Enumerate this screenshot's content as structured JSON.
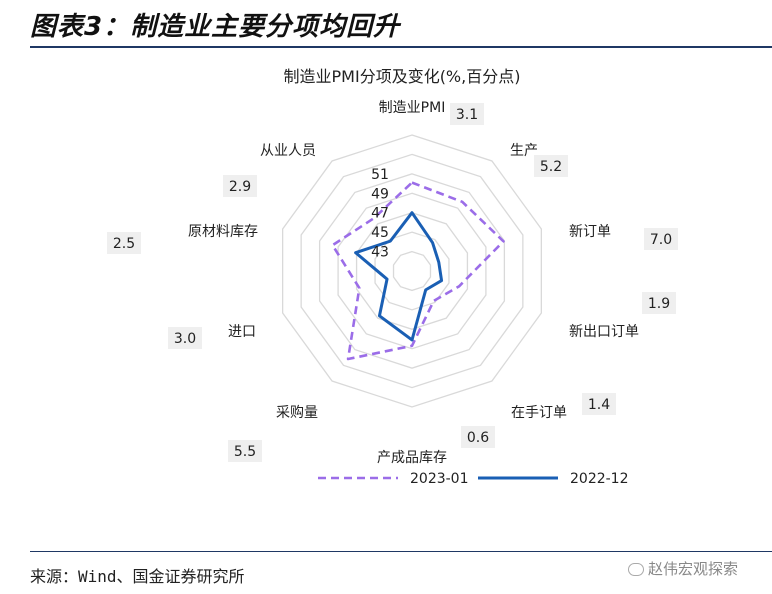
{
  "heading": "图表3：制造业主要分项均回升",
  "source": "来源：Wind、国金证券研究所",
  "watermark": "赵伟宏观探索",
  "chart_data": {
    "type": "radar",
    "title": "制造业PMI分项及变化(%,百分点)",
    "axes": [
      "制造业PMI",
      "生产",
      "新订单",
      "新出口订单",
      "在手订单",
      "产成品库存",
      "采购量",
      "进口",
      "原材料库存",
      "从业人员"
    ],
    "radial_ticks": [
      43,
      45,
      47,
      49,
      51
    ],
    "rlim": [
      41,
      55
    ],
    "changes": [
      "3.1",
      "5.2",
      "7.0",
      "1.9",
      "1.4",
      "0.6",
      "5.5",
      "3.0",
      "2.5",
      "2.9"
    ],
    "series": [
      {
        "name": "2023-01",
        "values": [
          50.1,
          49.8,
          50.9,
          46.1,
          44.8,
          48.7,
          52.2,
          46.7,
          49.6,
          47.7
        ],
        "color": "#9b6de8",
        "style": "dashed"
      },
      {
        "name": "2022-12",
        "values": [
          47.0,
          44.6,
          43.9,
          44.2,
          43.4,
          48.1,
          46.7,
          43.7,
          47.1,
          44.8
        ],
        "color": "#1a5fb4",
        "style": "solid"
      }
    ]
  }
}
